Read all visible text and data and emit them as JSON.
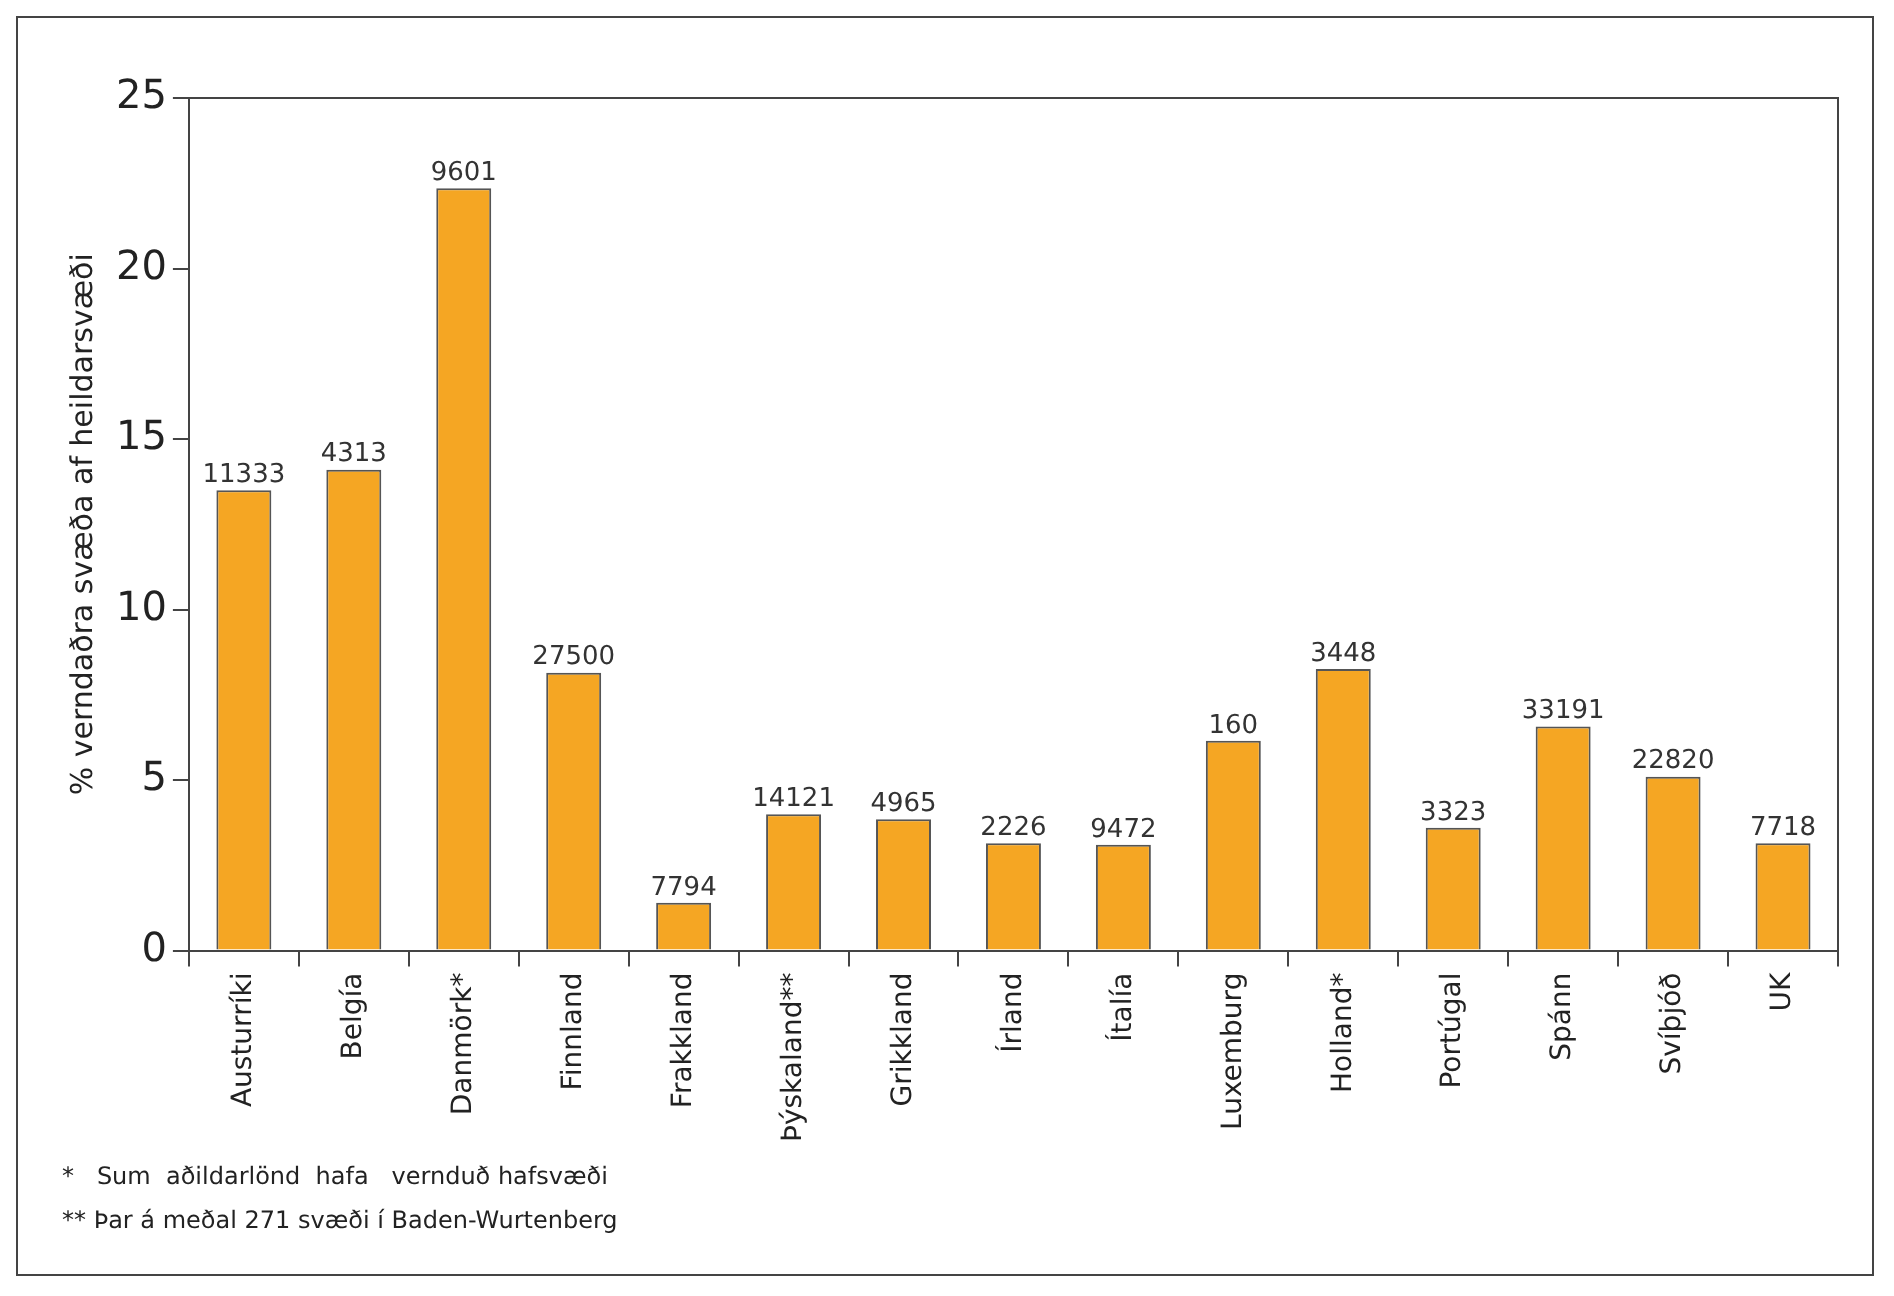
{
  "chart_data": {
    "type": "bar",
    "ylabel": "% verndaðra svæða af heildarsvæði",
    "categories": [
      "Austurríki",
      "Belgía",
      "Danmörk*",
      "Finnland",
      "Frakkland",
      "Þýskaland**",
      "Grikkland",
      "Írland",
      "Ítalía",
      "Luxemburg",
      "Holland*",
      "Portúgal",
      "Spánn",
      "Svíþjóð",
      "UK"
    ],
    "values": [
      13.5,
      14.1,
      22.35,
      8.15,
      1.4,
      4.0,
      3.85,
      3.15,
      3.1,
      6.15,
      8.26,
      3.6,
      6.57,
      5.1,
      3.15
    ],
    "color": "#f5a623",
    "ylim": [
      0,
      25
    ],
    "yticks": [
      0,
      5,
      10,
      15,
      20,
      25
    ],
    "annotations": [
      {
        "text": "11333",
        "x": "Austurríki",
        "y": 13.5
      },
      {
        "text": "4313",
        "x": "Belgía",
        "y": 14.1
      },
      {
        "text": "9601",
        "x": "Danmörk*",
        "y": 22.35
      },
      {
        "text": "27500",
        "x": "Finnland",
        "y": 8.15
      },
      {
        "text": "7794",
        "x": "Frakkland",
        "y": 1.4
      },
      {
        "text": "14121",
        "x": "Þýskaland**",
        "y": 4.0
      },
      {
        "text": "4965",
        "x": "Grikkland",
        "y": 3.85
      },
      {
        "text": "2226",
        "x": "Írland",
        "y": 3.15
      },
      {
        "text": "9472",
        "x": "Ítalía",
        "y": 3.1
      },
      {
        "text": "160",
        "x": "Luxemburg",
        "y": 6.15
      },
      {
        "text": "3448",
        "x": "Holland*",
        "y": 8.26
      },
      {
        "text": "3323",
        "x": "Portúgal",
        "y": 3.6
      },
      {
        "text": "33191",
        "x": "Spánn",
        "y": 6.57
      },
      {
        "text": "22820",
        "x": "Svíþjóð",
        "y": 5.1
      },
      {
        "text": "7718",
        "x": "UK",
        "y": 3.15
      },
      "*   Sum  aðildarlönd  hafa   vernduð hafsvæði",
      "** Þar á meðal 271 svæði í Baden-Wurtenberg"
    ]
  }
}
